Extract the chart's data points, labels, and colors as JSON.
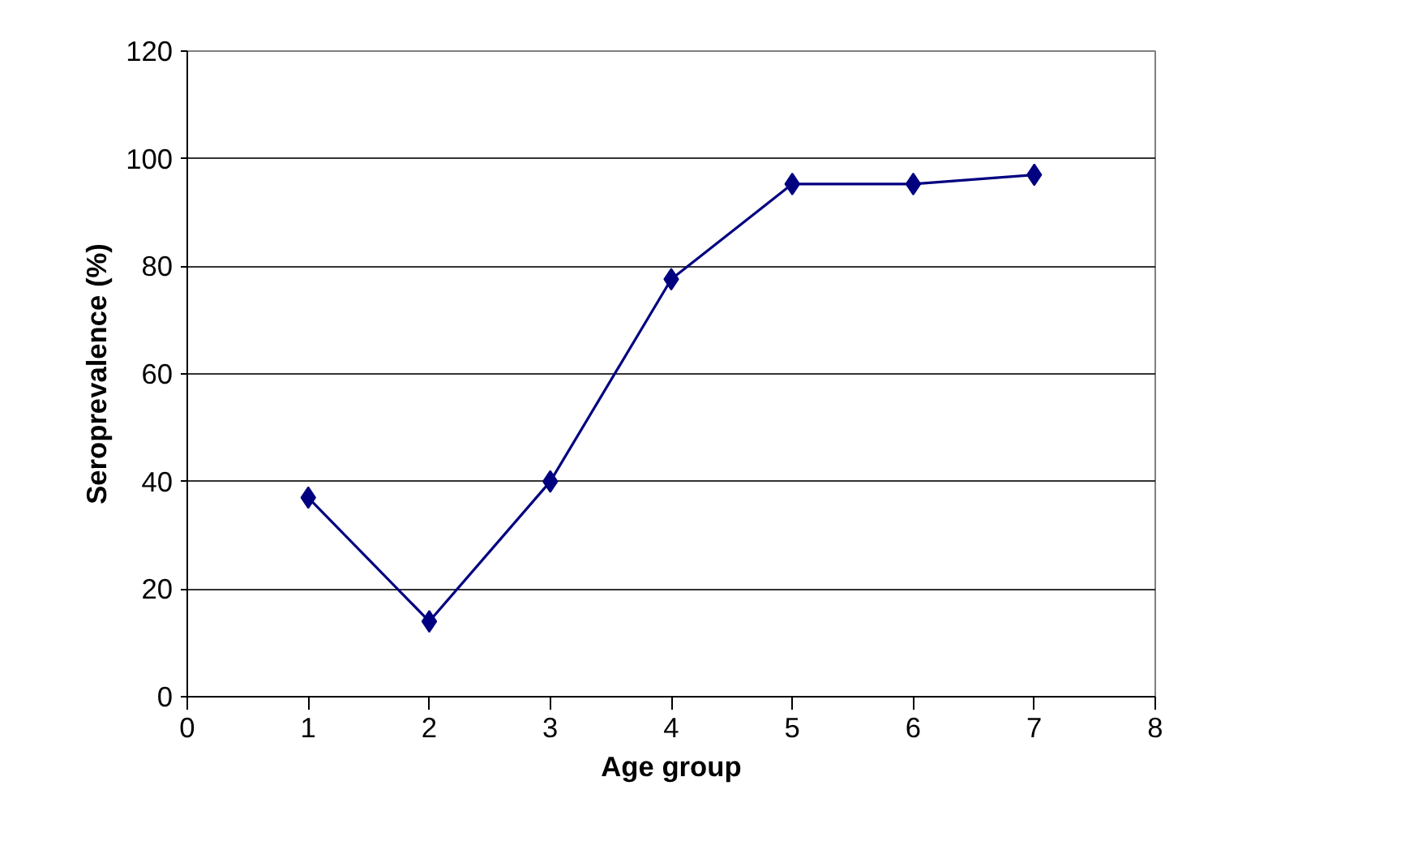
{
  "chart_data": {
    "type": "line",
    "xlabel": "Age group",
    "ylabel": "Seroprevalence (%)",
    "x": [
      1,
      2,
      3,
      4,
      5,
      6,
      7
    ],
    "series": [
      {
        "color": "#000080",
        "values": [
          37,
          14,
          40,
          77.6,
          95.3,
          95.3,
          97
        ]
      }
    ],
    "xlim": [
      0,
      8
    ],
    "xticks": [
      0,
      1,
      2,
      3,
      4,
      5,
      6,
      7,
      8
    ],
    "ylim": [
      0,
      120
    ],
    "yticks": [
      0,
      20,
      40,
      60,
      80,
      100,
      120
    ],
    "grid": "y",
    "marker": "diamond",
    "line_style": "solid"
  }
}
